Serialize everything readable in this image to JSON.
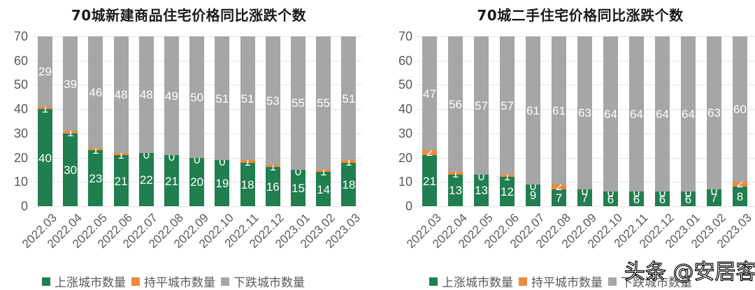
{
  "colors": {
    "up": "#217e4f",
    "flat": "#ee8a3c",
    "down": "#a6a6a6"
  },
  "legend": {
    "up": "上涨城市数量",
    "flat": "持平城市数量",
    "down": "下跌城市数量"
  },
  "watermark": "头条 @安居客",
  "chart_data": [
    {
      "type": "bar",
      "stacked": true,
      "title": "70城新建商品住宅价格同比涨跌个数",
      "xlabel": "",
      "ylabel": "",
      "ylim": [
        0,
        70
      ],
      "yticks": [
        0,
        10,
        20,
        30,
        40,
        50,
        60,
        70
      ],
      "grid": true,
      "legend_position": "bottom",
      "categories": [
        "2022.03",
        "2022.04",
        "2022.05",
        "2022.06",
        "2022.07",
        "2022.08",
        "2022.09",
        "2022.10",
        "2022.11",
        "2022.12",
        "2023.01",
        "2023.02",
        "2023.03"
      ],
      "series": [
        {
          "name": "上涨城市数量",
          "values": [
            40,
            30,
            23,
            21,
            22,
            21,
            20,
            19,
            18,
            16,
            15,
            14,
            18
          ]
        },
        {
          "name": "持平城市数量",
          "values": [
            1,
            1,
            1,
            1,
            0,
            0,
            0,
            0,
            1,
            1,
            0,
            1,
            1
          ]
        },
        {
          "name": "下跌城市数量",
          "values": [
            29,
            39,
            46,
            48,
            48,
            49,
            50,
            51,
            51,
            53,
            55,
            55,
            51
          ]
        }
      ]
    },
    {
      "type": "bar",
      "stacked": true,
      "title": "70城二手住宅价格同比涨跌个数",
      "xlabel": "",
      "ylabel": "",
      "ylim": [
        0,
        70
      ],
      "yticks": [
        0,
        10,
        20,
        30,
        40,
        50,
        60,
        70
      ],
      "grid": true,
      "legend_position": "bottom",
      "categories": [
        "2022.03",
        "2022.04",
        "2022.05",
        "2022.06",
        "2022.07",
        "2022.08",
        "2022.09",
        "2022.10",
        "2022.11",
        "2022.12",
        "2023.01",
        "2023.02",
        "2023.03"
      ],
      "series": [
        {
          "name": "上涨城市数量",
          "values": [
            21,
            13,
            13,
            12,
            9,
            7,
            7,
            6,
            6,
            6,
            6,
            7,
            8
          ]
        },
        {
          "name": "持平城市数量",
          "values": [
            2,
            1,
            0,
            1,
            0,
            2,
            0,
            0,
            0,
            0,
            0,
            0,
            2
          ]
        },
        {
          "name": "下跌城市数量",
          "values": [
            47,
            56,
            57,
            57,
            61,
            61,
            63,
            64,
            64,
            64,
            64,
            63,
            60
          ]
        }
      ]
    }
  ]
}
